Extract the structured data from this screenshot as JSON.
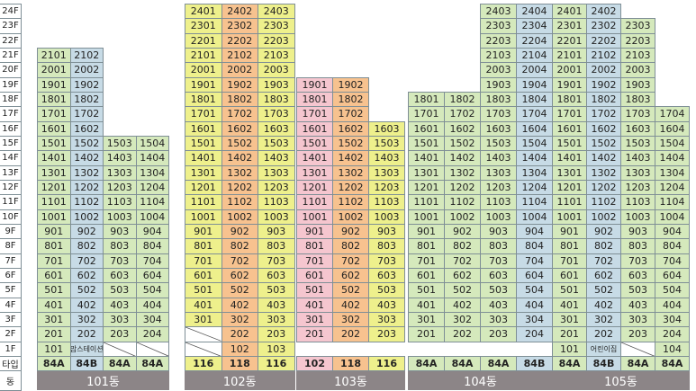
{
  "floor_labels": [
    "24F",
    "23F",
    "22F",
    "21F",
    "20F",
    "19F",
    "18F",
    "17F",
    "16F",
    "15F",
    "14F",
    "13F",
    "12F",
    "11F",
    "10F",
    "9F",
    "8F",
    "7F",
    "6F",
    "5F",
    "4F",
    "3F",
    "2F",
    "1F"
  ],
  "type_row_label": "타입",
  "building_row_label": "동",
  "colors": {
    "green": "#d5e9bc",
    "blue": "#c7dbe6",
    "yellow": "#eef08c",
    "orange": "#f7c28f",
    "pink": "#f5c6cf",
    "building_bar": "#8c8587"
  },
  "buildings": [
    {
      "name": "101동",
      "columns": [
        {
          "line": "01",
          "color": "green",
          "type": "84A",
          "top_floor": 21,
          "first_floor_label": "101"
        },
        {
          "line": "02",
          "color": "blue",
          "type": "84B",
          "top_floor": 21,
          "first_floor_label": "맘스테이션"
        },
        {
          "line": "03",
          "color": "green",
          "type": "84A",
          "top_floor": 15,
          "first_floor_label": "",
          "first_floor_hatched": true
        },
        {
          "line": "04",
          "color": "green",
          "type": "84A",
          "top_floor": 15,
          "first_floor_label": "",
          "first_floor_hatched": true
        }
      ]
    },
    {
      "name": "102동",
      "columns": [
        {
          "line": "01",
          "color": "yellow",
          "type": "116",
          "top_floor": 24,
          "bottom_floor": 3,
          "hatched_floors": [
            1,
            2
          ]
        },
        {
          "line": "02",
          "color": "orange",
          "type": "118",
          "top_floor": 24,
          "bottom_floor": 1
        },
        {
          "line": "03",
          "color": "yellow",
          "type": "116",
          "top_floor": 24,
          "bottom_floor": 1
        }
      ]
    },
    {
      "name": "103동",
      "columns": [
        {
          "line": "01",
          "color": "pink",
          "type": "102",
          "top_floor": 19,
          "bottom_floor": 2
        },
        {
          "line": "02",
          "color": "orange",
          "type": "118",
          "top_floor": 19,
          "bottom_floor": 2
        },
        {
          "line": "03",
          "color": "yellow",
          "type": "116",
          "top_floor": 16,
          "bottom_floor": 2
        }
      ]
    },
    {
      "name": "104동",
      "columns": [
        {
          "line": "01",
          "color": "green",
          "type": "84A",
          "top_floor": 18,
          "bottom_floor": 2
        },
        {
          "line": "02",
          "color": "green",
          "type": "84A",
          "top_floor": 18,
          "bottom_floor": 2
        },
        {
          "line": "03",
          "color": "green",
          "type": "84A",
          "top_floor": 24,
          "bottom_floor": 2
        },
        {
          "line": "04",
          "color": "blue",
          "type": "84B",
          "top_floor": 24,
          "bottom_floor": 2
        }
      ]
    },
    {
      "name": "105동",
      "columns": [
        {
          "line": "01",
          "color": "green",
          "type": "84A",
          "top_floor": 24,
          "first_floor_label": "101"
        },
        {
          "line": "02",
          "color": "blue",
          "type": "84B",
          "top_floor": 24,
          "first_floor_label": "어린이집"
        },
        {
          "line": "03",
          "color": "green",
          "type": "84A",
          "top_floor": 23,
          "first_floor_label": "",
          "first_floor_hatched": true
        },
        {
          "line": "04",
          "color": "green",
          "type": "84A",
          "top_floor": 17,
          "first_floor_label": "104"
        }
      ]
    }
  ]
}
